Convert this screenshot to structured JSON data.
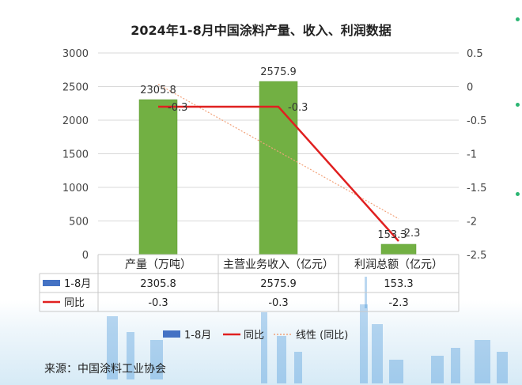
{
  "colors": {
    "bar": "#72b043",
    "bar_outline": "#5a9a2f",
    "line": "#e02020",
    "trend": "#f2a27a",
    "grid": "#d9d9d9",
    "table_border": "#c8c8c8",
    "legend_bar": "#4472c4",
    "skyline": "#3d8fd6",
    "accent_dot": "#2bb673"
  },
  "icons": [
    "skyline-background",
    "legend-bar-swatch",
    "legend-line-swatch"
  ],
  "chart_data": {
    "type": "bar+line",
    "title": "2024年1-8月中国涂料产量、收入、利润数据",
    "categories": [
      "产量（万吨）",
      "主营业务收入（亿元）",
      "利润总额（亿元）"
    ],
    "series": [
      {
        "name": "1-8月",
        "type": "bar",
        "axis": "left",
        "values": [
          2305.8,
          2575.9,
          153.3
        ],
        "labels": [
          "2305.8",
          "2575.9",
          "153.3"
        ]
      },
      {
        "name": "同比",
        "type": "line",
        "axis": "right",
        "values": [
          -0.3,
          -0.3,
          -2.3
        ],
        "labels": [
          "-0.3",
          "-0.3",
          "-2.3"
        ]
      },
      {
        "name": "线性 (同比)",
        "type": "trendline",
        "axis": "right",
        "of": "同比"
      }
    ],
    "y_left": {
      "range": [
        0,
        3000
      ],
      "ticks": [
        "3000",
        "2500",
        "2000",
        "1500",
        "1000",
        "500",
        "0"
      ],
      "tick_values": [
        3000,
        2500,
        2000,
        1500,
        1000,
        500,
        0
      ]
    },
    "y_right": {
      "range": [
        -2.5,
        0.5
      ],
      "ticks": [
        "0.5",
        "0",
        "-0.5",
        "-1",
        "-1.5",
        "-2",
        "-2.5"
      ],
      "tick_values": [
        0.5,
        0,
        -0.5,
        -1,
        -1.5,
        -2,
        -2.5
      ]
    },
    "grid": true,
    "data_table": {
      "rows": [
        {
          "label": "1-8月",
          "values": [
            "2305.8",
            "2575.9",
            "153.3"
          ]
        },
        {
          "label": "同比",
          "values": [
            "-0.3",
            "-0.3",
            "-2.3"
          ]
        }
      ]
    },
    "legend": {
      "placement": "bottom",
      "items": [
        "1-8月",
        "同比",
        "线性 (同比)"
      ]
    }
  },
  "source": "来源：中国涂料工业协会"
}
